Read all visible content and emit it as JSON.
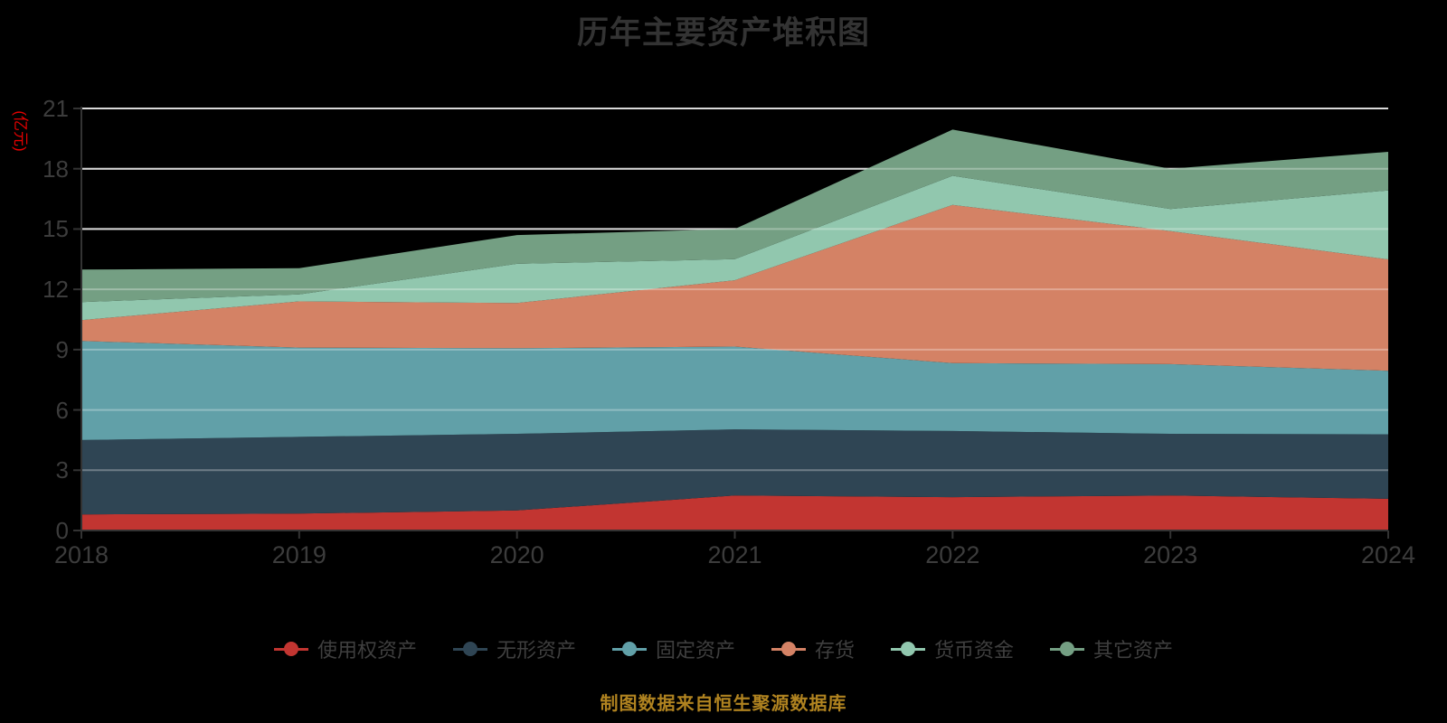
{
  "title": "历年主要资产堆积图",
  "footer": {
    "text": "制图数据来自恒生聚源数据库",
    "color": "#b08320"
  },
  "axis": {
    "unit_label": "(亿元)",
    "unit_color": "#e60000",
    "label_color": "#3c3c3c",
    "axis_line_color": "#333333",
    "grid_color": "#c9c9c9"
  },
  "chart_data": {
    "type": "area",
    "stacked": true,
    "title": "历年主要资产堆积图",
    "xlabel": "",
    "ylabel": "(亿元)",
    "x": [
      "2018",
      "2019",
      "2020",
      "2021",
      "2022",
      "2023",
      "2024"
    ],
    "ylim": [
      0,
      21
    ],
    "yticks": [
      0,
      3,
      6,
      9,
      12,
      15,
      18,
      21
    ],
    "grid": true,
    "legend_position": "bottom",
    "background": "#000000",
    "series": [
      {
        "name": "使用权资产",
        "color": "#c23531",
        "values": [
          0.8,
          0.84,
          1.0,
          1.74,
          1.66,
          1.74,
          1.58
        ]
      },
      {
        "name": "无形资产",
        "color": "#2f4554",
        "values": [
          3.7,
          3.82,
          3.81,
          3.29,
          3.29,
          3.07,
          3.21
        ]
      },
      {
        "name": "固定资产",
        "color": "#61a0a8",
        "values": [
          4.93,
          4.44,
          4.26,
          4.12,
          3.38,
          3.47,
          3.16
        ]
      },
      {
        "name": "存货",
        "color": "#d48265",
        "values": [
          1.04,
          2.3,
          2.25,
          3.3,
          7.87,
          6.62,
          5.54
        ]
      },
      {
        "name": "货币资金",
        "color": "#91c7ae",
        "values": [
          0.9,
          0.35,
          1.95,
          1.05,
          1.45,
          1.1,
          3.43
        ]
      },
      {
        "name": "其它资产",
        "color": "#749f83",
        "values": [
          1.61,
          1.3,
          1.43,
          1.5,
          2.3,
          2.0,
          1.92
        ]
      }
    ]
  }
}
